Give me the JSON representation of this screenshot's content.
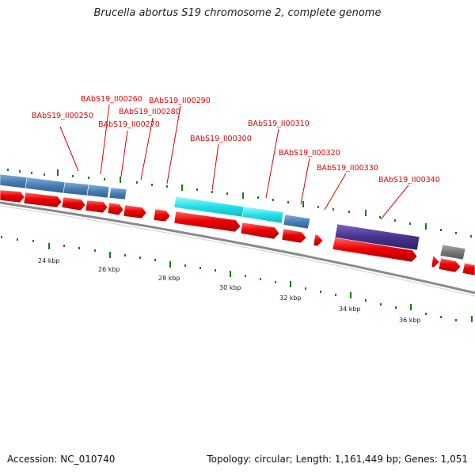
{
  "title": "Brucella abortus S19 chromosome 2, complete genome",
  "footer": {
    "accession": "Accession: NC_010740",
    "summary": "Topology: circular; Length: 1,161,449 bp; Genes: 1,051"
  },
  "colors": {
    "cds_forward": "#ee0000",
    "gene_blue": "#4a7fb5",
    "gene_cyan": "#22e0e8",
    "gene_purple": "#47338f",
    "gene_grey": "#777777",
    "backbone": "#888888",
    "tick": "#1a7a1a",
    "label": "#e00000"
  },
  "scale_labels": [
    "24 kbp",
    "26 kbp",
    "28 kbp",
    "30 kbp",
    "32 kbp",
    "34 kbp",
    "36 kbp"
  ],
  "gene_labels": [
    "BAbS19_II00250",
    "BAbS19_II00260",
    "BAbS19_II00270",
    "BAbS19_II00280",
    "BAbS19_II00290",
    "BAbS19_II00300",
    "BAbS19_II00310",
    "BAbS19_II00320",
    "BAbS19_II00330",
    "BAbS19_II00340"
  ]
}
